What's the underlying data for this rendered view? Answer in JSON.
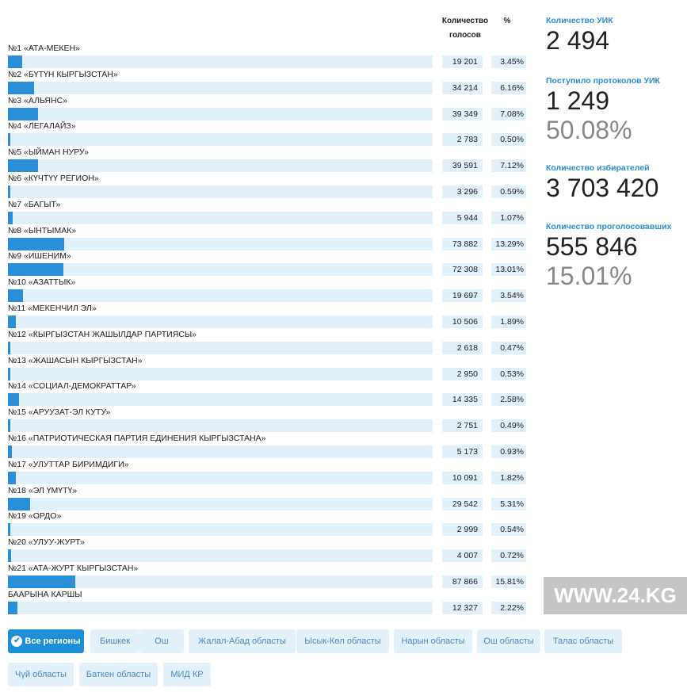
{
  "header": {
    "votes": "Количество голосов",
    "pct": "%"
  },
  "parties": [
    {
      "name": "№1 «АТА-МЕКЕН»",
      "votes": "19 201",
      "pct": "3.45%",
      "share": 3.45
    },
    {
      "name": "№2 «БҮТҮН КЫРГЫЗСТАН»",
      "votes": "34 214",
      "pct": "6.16%",
      "share": 6.16
    },
    {
      "name": "№3 «АЛЬЯНС»",
      "votes": "39 349",
      "pct": "7.08%",
      "share": 7.08
    },
    {
      "name": "№4 «ЛЕГАЛАЙЗ»",
      "votes": "2 783",
      "pct": "0.50%",
      "share": 0.5
    },
    {
      "name": "№5 «ЫЙМАН НУРУ»",
      "votes": "39 591",
      "pct": "7.12%",
      "share": 7.12
    },
    {
      "name": "№6 «КҮЧТҮҮ РЕГИОН»",
      "votes": "3 296",
      "pct": "0.59%",
      "share": 0.59
    },
    {
      "name": "№7 «БАГЫТ»",
      "votes": "5 944",
      "pct": "1.07%",
      "share": 1.07
    },
    {
      "name": "№8 «ЫНТЫМАК»",
      "votes": "73 882",
      "pct": "13.29%",
      "share": 13.29
    },
    {
      "name": "№9 «ИШЕНИМ»",
      "votes": "72 308",
      "pct": "13.01%",
      "share": 13.01
    },
    {
      "name": "№10 «АЗАТТЫК»",
      "votes": "19 697",
      "pct": "3.54%",
      "share": 3.54
    },
    {
      "name": "№11 «МЕКЕНЧИЛ ЭЛ»",
      "votes": "10 506",
      "pct": "1.89%",
      "share": 1.89
    },
    {
      "name": "№12 «КЫРГЫЗСТАН ЖАШЫЛДАР ПАРТИЯСЫ»",
      "votes": "2 618",
      "pct": "0.47%",
      "share": 0.47
    },
    {
      "name": "№13 «ЖАШАСЫН КЫРГЫЗСТАН»",
      "votes": "2 950",
      "pct": "0.53%",
      "share": 0.53
    },
    {
      "name": "№14 «СОЦИАЛ-ДЕМОКРАТТАР»",
      "votes": "14 335",
      "pct": "2.58%",
      "share": 2.58
    },
    {
      "name": "№15 «АРУУЗАТ-ЭЛ КУТУ»",
      "votes": "2 751",
      "pct": "0.49%",
      "share": 0.49
    },
    {
      "name": "№16 «ПАТРИОТИЧЕСКАЯ ПАРТИЯ ЕДИНЕНИЯ КЫРГЫЗСТАНА»",
      "votes": "5 173",
      "pct": "0.93%",
      "share": 0.93
    },
    {
      "name": "№17 «УЛУТТАР БИРИМДИГИ»",
      "votes": "10 091",
      "pct": "1.82%",
      "share": 1.82
    },
    {
      "name": "№18 «ЭЛ ҮМҮТҮ»",
      "votes": "29 542",
      "pct": "5.31%",
      "share": 5.31
    },
    {
      "name": "№19 «ОРДО»",
      "votes": "2 999",
      "pct": "0.54%",
      "share": 0.54
    },
    {
      "name": "№20 «УЛУУ-ЖУРТ»",
      "votes": "4 007",
      "pct": "0.72%",
      "share": 0.72
    },
    {
      "name": "№21 «АТА-ЖУРТ КЫРГЫЗСТАН»",
      "votes": "87 866",
      "pct": "15.81%",
      "share": 15.81
    },
    {
      "name": "БААРЫНА КАРШЫ",
      "votes": "12 327",
      "pct": "2.22%",
      "share": 2.22
    }
  ],
  "stats": {
    "uik_label": "Количество УИК",
    "uik": "2 494",
    "protocols_label": "Поступило протоколов УИК",
    "protocols": "1 249",
    "protocols_pct": "50.08%",
    "voters_label": "Количество избирателей",
    "voters": "3 703 420",
    "voted_label": "Количество проголосовавших",
    "voted": "555 846",
    "voted_pct": "15.01%"
  },
  "regions": [
    "Все регионы",
    "Бишкек",
    "Ош",
    "Жалал-Абад областы",
    "Ысык-Көл областы",
    "Нарын областы",
    "Ош областы",
    "Талас областы",
    "Чүй областы",
    "Баткен областы",
    "МИД КР"
  ],
  "watermark": "WWW.24.KG"
}
